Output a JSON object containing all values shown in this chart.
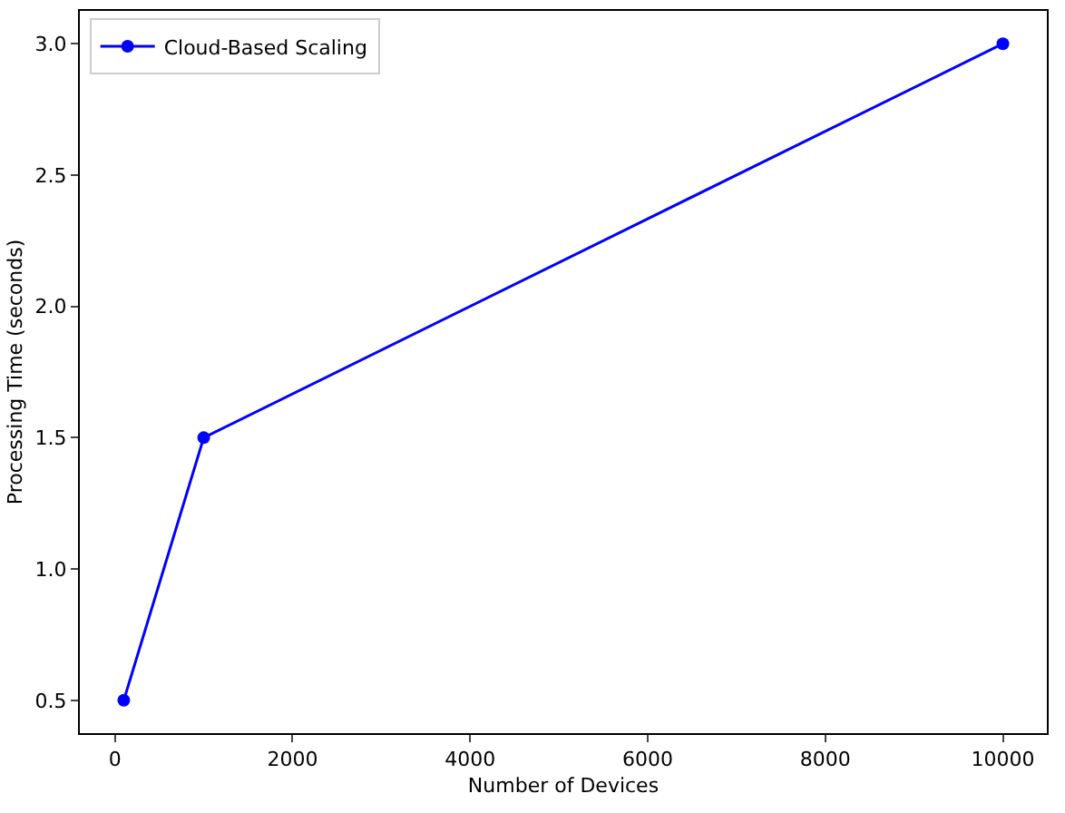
{
  "chart_data": {
    "type": "line",
    "xlabel": "Number of Devices",
    "ylabel": "Processing Time (seconds)",
    "x": [
      100,
      1000,
      10000
    ],
    "series": [
      {
        "name": "Cloud-Based Scaling",
        "color": "#0000ff",
        "values": [
          0.5,
          1.5,
          3.0
        ]
      }
    ],
    "xlim": [
      -395,
      10495
    ],
    "xticks": [
      0,
      2000,
      4000,
      6000,
      8000,
      10000
    ],
    "ylim": [
      0.375,
      3.125
    ],
    "yticks": [
      {
        "value": 0.5,
        "label": "0.5"
      },
      {
        "value": 1.0,
        "label": "1.0"
      },
      {
        "value": 1.5,
        "label": "1.5"
      },
      {
        "value": 2.0,
        "label": "2.0"
      },
      {
        "value": 2.5,
        "label": "2.5"
      },
      {
        "value": 3.0,
        "label": "3.0"
      }
    ],
    "grid": false,
    "legend": "top left",
    "marker": "circle",
    "line_style": "solid"
  }
}
